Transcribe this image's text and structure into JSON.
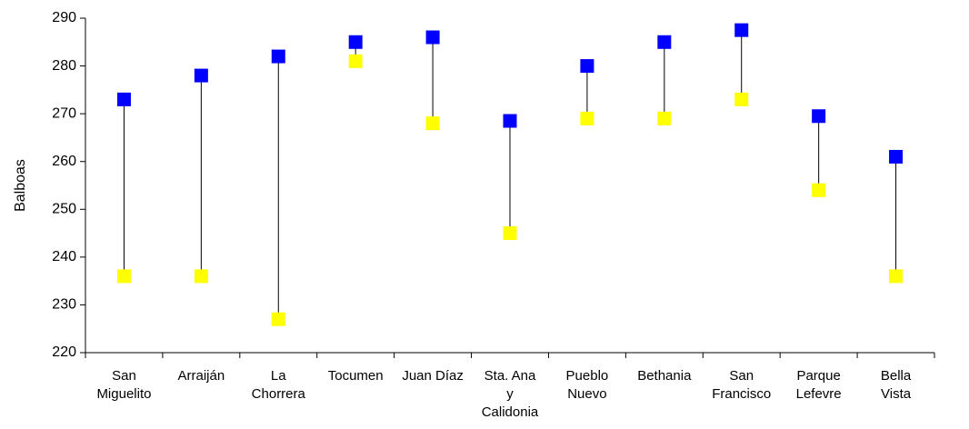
{
  "chart_data": {
    "type": "scatter",
    "title": "",
    "xlabel": "",
    "ylabel": "Balboas",
    "ylim": [
      220,
      290
    ],
    "yticks": [
      220,
      230,
      240,
      250,
      260,
      270,
      280,
      290
    ],
    "grid": false,
    "legend": "none",
    "categories": [
      [
        "San",
        "Miguelito"
      ],
      [
        "Arraiján"
      ],
      [
        "La",
        "Chorrera"
      ],
      [
        "Tocumen"
      ],
      [
        "Juan Díaz"
      ],
      [
        "Sta. Ana",
        "y",
        "Calidonia"
      ],
      [
        "Pueblo",
        "Nuevo"
      ],
      [
        "Bethania"
      ],
      [
        "San",
        "Francisco"
      ],
      [
        "Parque",
        "Lefevre"
      ],
      [
        "Bella",
        "Vista"
      ]
    ],
    "series": [
      {
        "color": "#0000FF",
        "marker": "square",
        "values": [
          273,
          278,
          282,
          285,
          286,
          268.5,
          280,
          285,
          287.5,
          269.5,
          261
        ]
      },
      {
        "color": "#FFFF00",
        "marker": "square",
        "values": [
          236,
          236,
          227,
          281,
          268,
          245,
          269,
          269,
          273,
          254,
          236
        ]
      }
    ],
    "connector_color": "#000000"
  }
}
